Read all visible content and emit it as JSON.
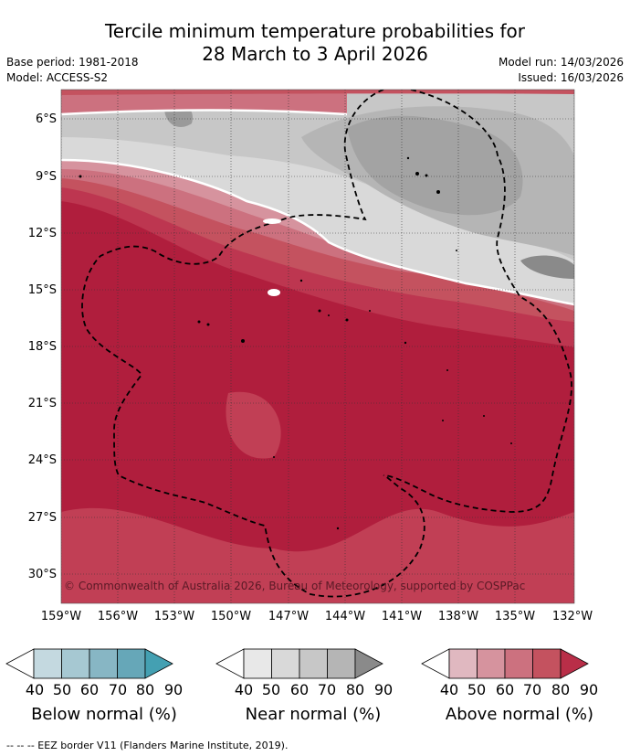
{
  "title": {
    "line1": "Tercile minimum temperature probabilities for",
    "line2": "28 March to 3 April 2026"
  },
  "meta": {
    "base_period": "Base period: 1981-2018",
    "model": "Model: ACCESS-S2",
    "model_run": "Model run: 14/03/2026",
    "issued": "Issued: 16/03/2026"
  },
  "map": {
    "latitude_labels": [
      "6°S",
      "9°S",
      "12°S",
      "15°S",
      "18°S",
      "21°S",
      "24°S",
      "27°S",
      "30°S"
    ],
    "longitude_labels": [
      "159°W",
      "156°W",
      "153°W",
      "150°W",
      "147°W",
      "144°W",
      "141°W",
      "138°W",
      "135°W",
      "132°W"
    ],
    "copyright": "© Commonwealth of Australia 2026, Bureau of Meteorology, supported by COSPPac",
    "colors": {
      "above_40": "#dfb7bf",
      "above_50": "#d6939e",
      "above_60": "#cc717f",
      "above_70": "#c4525f",
      "above_80": "#bd3650",
      "above_90": "#b01e3d",
      "near_40": "#e8e8e8",
      "near_50": "#d9d9d9",
      "near_60": "#c7c7c7",
      "near_70": "#b5b5b5",
      "near_80": "#a1a1a1",
      "near_90": "#888888"
    }
  },
  "legends": [
    {
      "name": "Below normal (%)",
      "ticks": [
        "40",
        "50",
        "60",
        "70",
        "80",
        "90"
      ],
      "colors": [
        "#ffffff",
        "#c4d9e0",
        "#a6c8d2",
        "#87b6c4",
        "#66a7b8",
        "#44a0b2"
      ]
    },
    {
      "name": "Near normal (%)",
      "ticks": [
        "40",
        "50",
        "60",
        "70",
        "80",
        "90"
      ],
      "colors": [
        "#ffffff",
        "#e8e8e8",
        "#d9d9d9",
        "#c7c7c7",
        "#b5b5b5",
        "#8a8a8a"
      ]
    },
    {
      "name": "Above normal (%)",
      "ticks": [
        "40",
        "50",
        "60",
        "70",
        "80",
        "90"
      ],
      "colors": [
        "#ffffff",
        "#e0b8c0",
        "#d6939e",
        "#cc717f",
        "#c4525f",
        "#b92e48"
      ]
    }
  ],
  "footnote": "-- -- -- EEZ border V11 (Flanders Marine Institute, 2019)."
}
